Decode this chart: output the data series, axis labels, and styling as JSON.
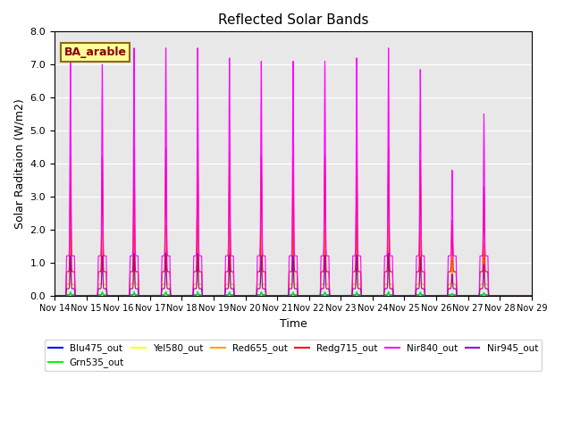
{
  "title": "Reflected Solar Bands",
  "xlabel": "Time",
  "ylabel": "Solar Raditaion (W/m2)",
  "ylim": [
    0,
    8.0
  ],
  "yticks": [
    0.0,
    1.0,
    2.0,
    3.0,
    4.0,
    5.0,
    6.0,
    7.0,
    8.0
  ],
  "xtick_labels": [
    "Nov 14",
    "Nov 15",
    "Nov 16",
    "Nov 17",
    "Nov 18",
    "Nov 19",
    "Nov 20",
    "Nov 21",
    "Nov 22",
    "Nov 23",
    "Nov 24",
    "Nov 25",
    "Nov 26",
    "Nov 27",
    "Nov 28",
    "Nov 29"
  ],
  "annotation_text": "BA_arable",
  "annotation_color": "#8B0000",
  "annotation_bg": "#FFFF99",
  "annotation_edge": "#8B6914",
  "background_color": "#E8E8E8",
  "series": [
    {
      "name": "Blu475_out",
      "color": "#0000FF",
      "scale": 0.014,
      "broad_scale": 0.014
    },
    {
      "name": "Grn535_out",
      "color": "#00FF00",
      "scale": 0.014,
      "broad_scale": 0.014
    },
    {
      "name": "Yel580_out",
      "color": "#FFFF00",
      "scale": 0.17,
      "broad_scale": 0.17
    },
    {
      "name": "Red655_out",
      "color": "#FFA500",
      "scale": 0.28,
      "broad_scale": 0.28
    },
    {
      "name": "Redg715_out",
      "color": "#FF0000",
      "scale": 0.6,
      "broad_scale": 0.6
    },
    {
      "name": "Nir840_out",
      "color": "#FF00FF",
      "scale": 1.0,
      "broad_scale": 1.0
    },
    {
      "name": "Nir945_out",
      "color": "#9900CC",
      "scale": 0.17,
      "broad_scale": 0.17
    }
  ],
  "nir840_peaks": [
    7.1,
    7.0,
    7.5,
    7.5,
    7.5,
    7.2,
    7.1,
    7.1,
    7.1,
    7.2,
    7.5,
    6.85,
    3.8,
    5.5
  ],
  "broad_base_nir": 1.2,
  "total_days": 15,
  "figsize": [
    6.4,
    4.8
  ],
  "dpi": 100
}
